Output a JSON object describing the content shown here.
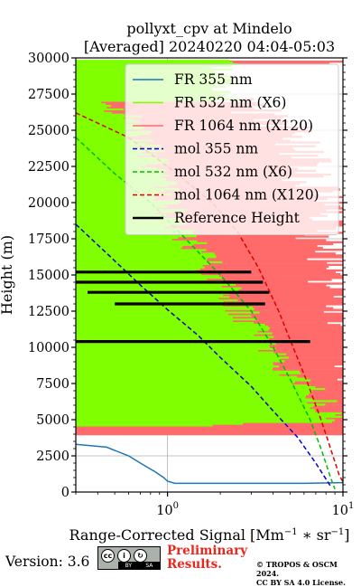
{
  "chart_data": {
    "type": "line",
    "title": "pollyxt_cpv at Mindelo",
    "subtitle": "[Averaged] 20240220 04:04-05:03",
    "xlabel": "Range-Corrected Signal [Mm",
    "xlabel_sup1": "−1",
    "xlabel_mid": " ∗ sr",
    "xlabel_sup2": "−1",
    "xlabel_end": "]",
    "ylabel": "Height (m)",
    "xscale": "log",
    "xlim": [
      0.3,
      10
    ],
    "ylim": [
      0,
      30000
    ],
    "x_ticks": [
      {
        "value": 1,
        "label": "10",
        "exp": "0"
      },
      {
        "value": 10,
        "label": "10",
        "exp": "1"
      }
    ],
    "y_ticks": [
      {
        "value": 0,
        "label": "0"
      },
      {
        "value": 2500,
        "label": "2500"
      },
      {
        "value": 5000,
        "label": "5000"
      },
      {
        "value": 7500,
        "label": "7500"
      },
      {
        "value": 10000,
        "label": "10000"
      },
      {
        "value": 12500,
        "label": "12500"
      },
      {
        "value": 15000,
        "label": "15000"
      },
      {
        "value": 17500,
        "label": "17500"
      },
      {
        "value": 20000,
        "label": "20000"
      },
      {
        "value": 22500,
        "label": "22500"
      },
      {
        "value": 25000,
        "label": "25000"
      },
      {
        "value": 27500,
        "label": "27500"
      },
      {
        "value": 30000,
        "label": "30000"
      }
    ],
    "grid": true,
    "legend_position": "top-right",
    "series": [
      {
        "name": "FR 355 nm",
        "color": "#1f77b4",
        "style": "solid",
        "points": [
          [
            0.3,
            3300
          ],
          [
            0.45,
            3100
          ],
          [
            0.6,
            2500
          ],
          [
            0.7,
            2000
          ],
          [
            0.85,
            1400
          ],
          [
            0.95,
            1000
          ],
          [
            1.0,
            750
          ],
          [
            1.1,
            600
          ],
          [
            2,
            600
          ],
          [
            4,
            600
          ],
          [
            6,
            600
          ],
          [
            10,
            650
          ]
        ]
      },
      {
        "name": "FR 532 nm (X6)",
        "color": "#7fff00",
        "style": "solid",
        "points": [
          [
            0.3,
            27000
          ],
          [
            0.6,
            26000
          ],
          [
            0.8,
            22000
          ],
          [
            1.0,
            19000
          ],
          [
            1.5,
            16000
          ],
          [
            2.2,
            13500
          ],
          [
            3,
            11000
          ],
          [
            4,
            9000
          ],
          [
            5.5,
            7500
          ],
          [
            7,
            6200
          ],
          [
            9.5,
            4800
          ]
        ]
      },
      {
        "name": "FR 1064 nm (X120)",
        "color": "#ff6b6b",
        "style": "solid",
        "points": [
          [
            0.3,
            29500
          ],
          [
            0.6,
            28000
          ],
          [
            1.0,
            27500
          ],
          [
            2,
            26000
          ],
          [
            3,
            24000
          ],
          [
            4,
            19500
          ],
          [
            5,
            15500
          ],
          [
            6,
            12000
          ],
          [
            7,
            9000
          ],
          [
            8,
            6500
          ],
          [
            9.5,
            4000
          ]
        ]
      },
      {
        "name": "mol 355 nm",
        "color": "#0000cc",
        "style": "dashed",
        "points": [
          [
            0.3,
            18500
          ],
          [
            0.45,
            16500
          ],
          [
            0.7,
            14300
          ],
          [
            1.0,
            12600
          ],
          [
            1.5,
            10800
          ],
          [
            2.0,
            9300
          ],
          [
            3.0,
            7300
          ],
          [
            4.0,
            5600
          ],
          [
            5.5,
            3800
          ],
          [
            7.0,
            2000
          ],
          [
            8.5,
            400
          ]
        ]
      },
      {
        "name": "mol 532 nm (X6)",
        "color": "#00bb00",
        "style": "dashed",
        "points": [
          [
            0.3,
            24500
          ],
          [
            0.5,
            22000
          ],
          [
            0.8,
            20000
          ],
          [
            1.2,
            17800
          ],
          [
            2.0,
            15000
          ],
          [
            3.0,
            12500
          ],
          [
            4.0,
            10000
          ],
          [
            5.0,
            7800
          ],
          [
            6.5,
            5000
          ],
          [
            7.5,
            3000
          ],
          [
            8.5,
            1000
          ],
          [
            9.0,
            200
          ]
        ]
      },
      {
        "name": "mol 1064 nm (X120)",
        "color": "#dd0000",
        "style": "dashed",
        "points": [
          [
            0.3,
            26200
          ],
          [
            0.6,
            24500
          ],
          [
            1.0,
            22500
          ],
          [
            1.8,
            20000
          ],
          [
            2.5,
            18000
          ],
          [
            3.3,
            15500
          ],
          [
            4.3,
            12500
          ],
          [
            5.2,
            10000
          ],
          [
            6.3,
            7500
          ],
          [
            7.5,
            5000
          ],
          [
            8.5,
            3000
          ],
          [
            9.5,
            1200
          ],
          [
            10,
            700
          ]
        ]
      },
      {
        "name": "Reference Height",
        "color": "#000000",
        "style": "solid",
        "points": [
          [
            0.3,
            15200
          ],
          [
            3.0,
            15100
          ],
          [
            0.3,
            14500
          ],
          [
            3.5,
            14400
          ],
          [
            0.35,
            13800
          ],
          [
            3.8,
            13700
          ],
          [
            0.5,
            13000
          ],
          [
            3.6,
            12900
          ],
          [
            0.3,
            10400
          ],
          [
            6.5,
            10300
          ]
        ]
      }
    ]
  },
  "footer": {
    "version": "Version: 3.6",
    "license_badge": {
      "by": "BY",
      "sa": "SA"
    },
    "preliminary_line1": "Preliminary",
    "preliminary_line2": "Results.",
    "copyright_line1": "© TROPOS & OSCM 2024.",
    "copyright_line2": "CC BY SA 4.0 License."
  }
}
